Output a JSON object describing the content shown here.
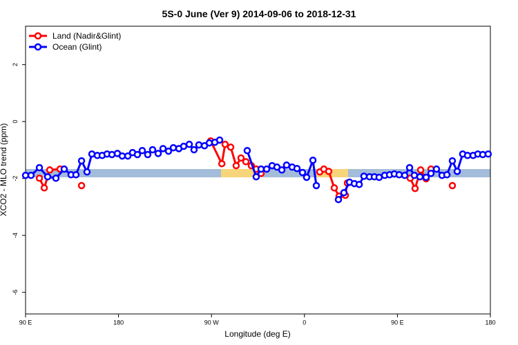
{
  "chart_data": {
    "type": "line",
    "title": "5S-0 June (Ver 9)   2014-09-06 to 2018-12-31",
    "x_label": "Longitude (deg E)",
    "y_label": "XCO2 - MLO trend (ppm)",
    "xlim": [
      90,
      540
    ],
    "ylim": [
      -6.76,
      3.35
    ],
    "xticks": [
      {
        "value": 90,
        "label": "90 E"
      },
      {
        "value": 180,
        "label": "180"
      },
      {
        "value": 270,
        "label": "90 W"
      },
      {
        "value": 360,
        "label": "0"
      },
      {
        "value": 450,
        "label": "90 E"
      },
      {
        "value": 540,
        "label": "180"
      }
    ],
    "yticks": [
      -6,
      -4,
      -2,
      0,
      2
    ],
    "legend": "top-left",
    "series": [
      {
        "name": "Land (Nadir&Glint)",
        "color": "#ff0000",
        "x": [
          103.4,
          108.1,
          113.4,
          123.4,
          null,
          144.2,
          null,
          269.2,
          280,
          283.2,
          288.6,
          293.9,
          298.6,
          303.3,
          308.6,
          313.3,
          318,
          null,
          374.8,
          378.8,
          383.5,
          388.9,
          393.5,
          399.6,
          401.6,
          null,
          462.4,
          467.1,
          472.5,
          477.8,
          482.5,
          null,
          503.2
        ],
        "values": [
          -1.99,
          -2.33,
          -1.7,
          -1.67,
          null,
          -2.25,
          null,
          -0.68,
          -1.48,
          -0.8,
          -0.9,
          -1.55,
          -1.28,
          -1.41,
          -1.55,
          -1.67,
          -1.82,
          null,
          -1.77,
          -1.67,
          -1.75,
          -2.33,
          -2.62,
          -2.59,
          -2.16,
          null,
          -1.99,
          -2.35,
          -1.7,
          -2.01,
          -1.67,
          null,
          -2.25
        ]
      },
      {
        "name": "Ocean (Glint)",
        "color": "#0000ff",
        "x": [
          90,
          95.3,
          103.4,
          111.4,
          119.4,
          127.4,
          134.1,
          138.8,
          144.2,
          149.5,
          154.2,
          159.5,
          164.2,
          168.9,
          173.6,
          178.9,
          183.6,
          189,
          193.6,
          198.3,
          203,
          208.3,
          213,
          218.4,
          223.1,
          228.4,
          233.1,
          238.4,
          243.1,
          248.5,
          253.1,
          257.8,
          263.2,
          267.9,
          273.2,
          277.9,
          null,
          304.6,
          313.3,
          318,
          323.4,
          328.7,
          333.4,
          338.1,
          342.7,
          348.1,
          352.8,
          358.1,
          362.1,
          368.2,
          371.5,
          null,
          392.9,
          398.2,
          403.6,
          408.3,
          413,
          417.6,
          423,
          427.7,
          432.3,
          437.7,
          442.4,
          447,
          451.7,
          457.1,
          461.8,
          466.4,
          471.8,
          477.8,
          482.5,
          487.8,
          493.2,
          497.9,
          503.2,
          507.9,
          513.2,
          517.9,
          523.3,
          527.9,
          532.6,
          537.9
        ],
        "values": [
          -1.89,
          -1.89,
          -1.62,
          -1.94,
          -1.99,
          -1.67,
          -1.87,
          -1.87,
          -1.38,
          -1.77,
          -1.14,
          -1.19,
          -1.19,
          -1.14,
          -1.16,
          -1.12,
          -1.21,
          -1.21,
          -1.09,
          -1.16,
          -1.02,
          -1.16,
          -0.99,
          -1.12,
          -0.95,
          -1.04,
          -0.92,
          -0.95,
          -0.87,
          -0.8,
          -0.99,
          -0.82,
          -0.85,
          -0.75,
          -0.73,
          -0.65,
          null,
          -1.02,
          -1.94,
          -1.67,
          -1.67,
          -1.55,
          -1.6,
          -1.7,
          -1.53,
          -1.6,
          -1.65,
          -1.79,
          -1.96,
          -1.36,
          -2.25,
          null,
          -2.74,
          -2.5,
          -2.13,
          -2.18,
          -2.21,
          -1.92,
          -1.94,
          -1.94,
          -1.96,
          -1.89,
          -1.87,
          -1.84,
          -1.87,
          -1.89,
          -1.62,
          -1.89,
          -1.94,
          -1.96,
          -1.82,
          -1.67,
          -1.89,
          -1.87,
          -1.38,
          -1.75,
          -1.14,
          -1.19,
          -1.19,
          -1.14,
          -1.16,
          -1.14
        ]
      }
    ]
  }
}
